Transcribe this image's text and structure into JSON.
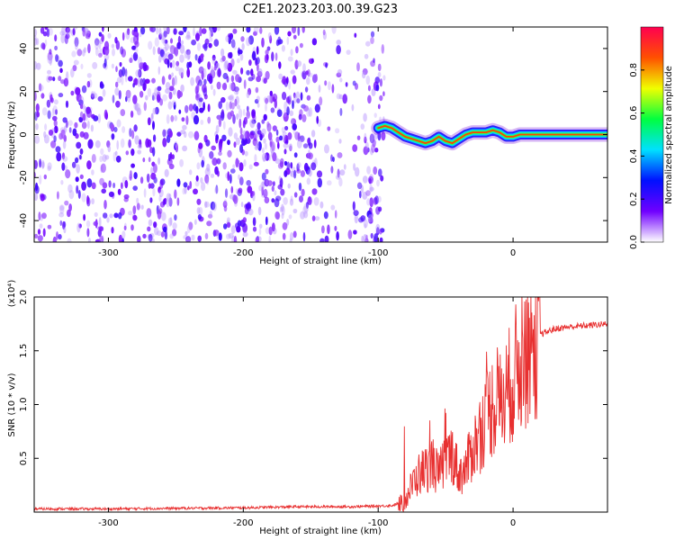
{
  "title": "C2E1.2023.203.00.39.G23",
  "chart_data": [
    {
      "type": "heatmap",
      "xlabel": "Height of straight line (km)",
      "ylabel": "Frequency (Hz)",
      "xlim": [
        -355,
        70
      ],
      "ylim": [
        -50,
        50
      ],
      "x_ticks": [
        -300,
        -200,
        -100,
        0
      ],
      "x_tick_labels": [
        "-300",
        "-200",
        "-100",
        "0"
      ],
      "y_ticks": [
        -40,
        -20,
        0,
        20,
        40
      ],
      "y_tick_labels": [
        "-40",
        "-20",
        "0",
        "20",
        "40"
      ],
      "noise_region_x": [
        -355,
        -95
      ],
      "signal_track": {
        "x": [
          -100,
          -95,
          -90,
          -85,
          -80,
          -75,
          -70,
          -65,
          -60,
          -55,
          -50,
          -45,
          -40,
          -35,
          -30,
          -25,
          -20,
          -15,
          -10,
          -5,
          0,
          5,
          10,
          20,
          30,
          40,
          50,
          60,
          70
        ],
        "y": [
          3,
          4,
          3,
          1,
          -1,
          -2,
          -3,
          -4,
          -3,
          -1,
          -3,
          -4,
          -2,
          0,
          1,
          1,
          1,
          2,
          1,
          -1,
          -1,
          0,
          0,
          0,
          0,
          0,
          0,
          0,
          0
        ]
      },
      "colorbar": {
        "label": "Normalized spectral amplitude",
        "range": [
          0,
          1
        ],
        "ticks": [
          0.0,
          0.2,
          0.4,
          0.6,
          0.8
        ],
        "tick_labels": [
          "0.0",
          "0.2",
          "0.4",
          "0.6",
          "0.8"
        ],
        "colors": [
          "#ffffff",
          "#7000ff",
          "#0010ff",
          "#00e0ff",
          "#00ff40",
          "#f0ff00",
          "#ff5000",
          "#ff0050"
        ]
      },
      "grid": false
    },
    {
      "type": "line",
      "xlabel": "Height of straight line (km)",
      "ylabel": "SNR (10 * v/v)",
      "y_scale_label": "(x10⁴)",
      "xlim": [
        -355,
        70
      ],
      "ylim": [
        0,
        2.0
      ],
      "x_ticks": [
        -300,
        -200,
        -100,
        0
      ],
      "x_tick_labels": [
        "-300",
        "-200",
        "-100",
        "0"
      ],
      "y_ticks": [
        0.5,
        1.0,
        1.5,
        2.0
      ],
      "y_tick_labels": [
        "0.5",
        "1.0",
        "1.5",
        "2.0"
      ],
      "color": "#e83030",
      "series": [
        {
          "x": [
            -355,
            -300,
            -250,
            -200,
            -160,
            -120,
            -90,
            -80,
            -75,
            -70,
            -65,
            -60,
            -55,
            -50,
            -45,
            -40,
            -35,
            -30,
            -25,
            -20,
            -15,
            -10,
            -5,
            0,
            5,
            10,
            15,
            20,
            30,
            40,
            50,
            60,
            70
          ],
          "values": [
            0.03,
            0.03,
            0.035,
            0.04,
            0.05,
            0.05,
            0.06,
            0.1,
            0.25,
            0.35,
            0.4,
            0.45,
            0.35,
            0.5,
            0.55,
            0.35,
            0.4,
            0.6,
            0.7,
            0.9,
            1.0,
            1.0,
            1.1,
            1.25,
            1.4,
            1.5,
            1.6,
            1.65,
            1.7,
            1.72,
            1.73,
            1.74,
            1.75
          ]
        }
      ],
      "grid": false
    }
  ]
}
